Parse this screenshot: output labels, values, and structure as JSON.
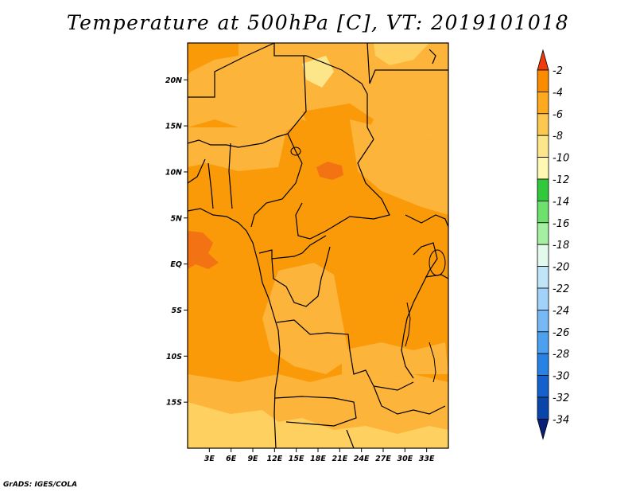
{
  "title": "Temperature at 500hPa [C], VT: 2019101018",
  "footer": "GrADS: IGES/COLA",
  "map": {
    "lon_range": [
      0,
      36
    ],
    "lat_range": [
      -20,
      24
    ],
    "lat_ticks": [
      {
        "value": 20,
        "label": "20N"
      },
      {
        "value": 15,
        "label": "15N"
      },
      {
        "value": 10,
        "label": "10N"
      },
      {
        "value": 5,
        "label": "5N"
      },
      {
        "value": 0,
        "label": "EQ"
      },
      {
        "value": -5,
        "label": "5S"
      },
      {
        "value": -10,
        "label": "10S"
      },
      {
        "value": -15,
        "label": "15S"
      }
    ],
    "lon_ticks": [
      {
        "value": 3,
        "label": "3E"
      },
      {
        "value": 6,
        "label": "6E"
      },
      {
        "value": 9,
        "label": "9E"
      },
      {
        "value": 12,
        "label": "12E"
      },
      {
        "value": 15,
        "label": "15E"
      },
      {
        "value": 18,
        "label": "18E"
      },
      {
        "value": 21,
        "label": "21E"
      },
      {
        "value": 24,
        "label": "24E"
      },
      {
        "value": 27,
        "label": "27E"
      },
      {
        "value": 30,
        "label": "30E"
      },
      {
        "value": 33,
        "label": "33E"
      }
    ]
  },
  "colorbar": {
    "levels": [
      "-2",
      "-4",
      "-6",
      "-8",
      "-10",
      "-12",
      "-14",
      "-16",
      "-18",
      "-20",
      "-22",
      "-24",
      "-26",
      "-28",
      "-30",
      "-32",
      "-34"
    ],
    "colors": [
      "#f03c0a",
      "#fa8c00",
      "#fdaa1e",
      "#fdc850",
      "#fde68a",
      "#fef8b4",
      "#32c83c",
      "#6ee06e",
      "#a5f0a0",
      "#e1faeb",
      "#c0e4f8",
      "#a0d2fa",
      "#78b8f5",
      "#4ba0f0",
      "#2882e6",
      "#1460cd",
      "#0a46aa",
      "#0a1f78"
    ]
  }
}
